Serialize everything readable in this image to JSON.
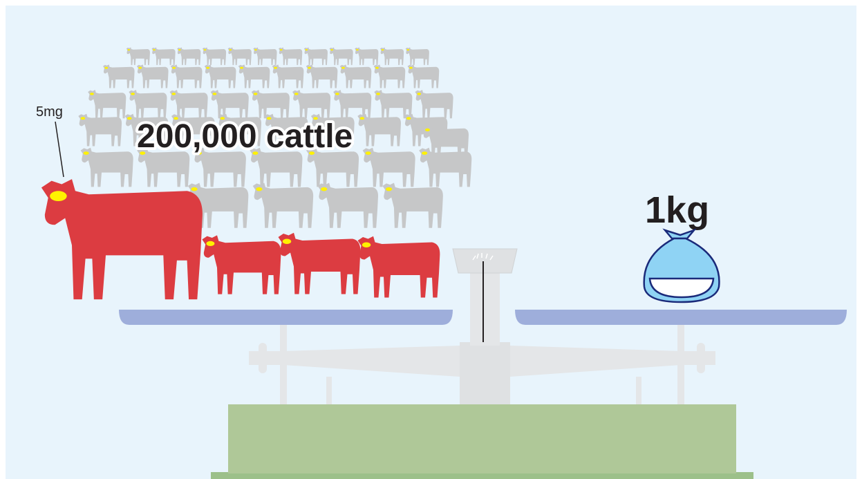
{
  "labels": {
    "cattle": "200,000 cattle",
    "dose": "5mg",
    "weight": "1kg"
  }
}
